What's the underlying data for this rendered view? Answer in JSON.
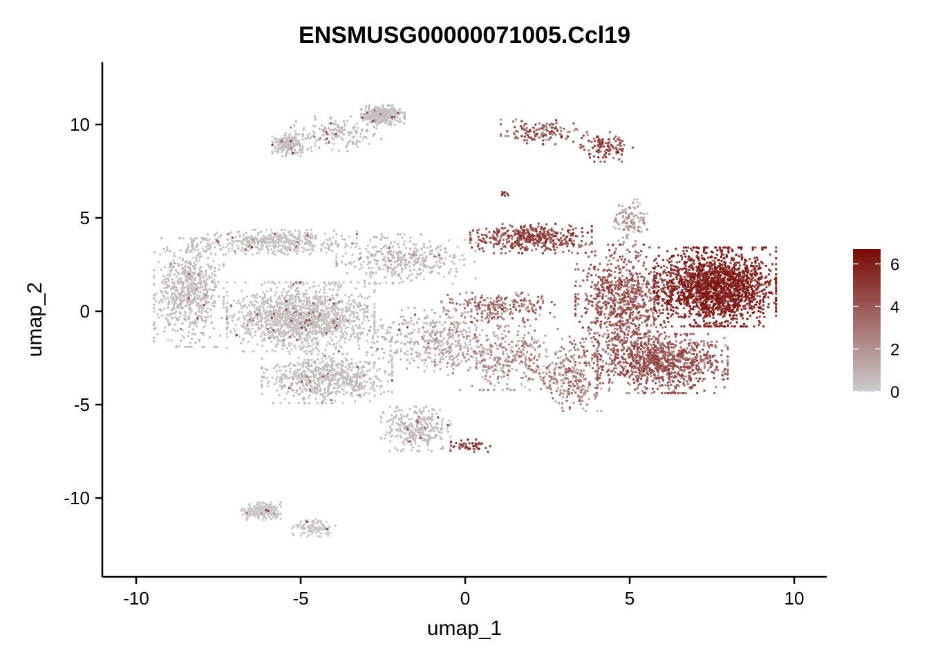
{
  "chart_data": {
    "type": "scatter",
    "title": "ENSMUSG00000071005.Ccl19",
    "xlabel": "umap_1",
    "ylabel": "umap_2",
    "xlim": [
      -11,
      11
    ],
    "ylim": [
      -14,
      13.2
    ],
    "x_ticks": [
      {
        "value": -10,
        "label": "-10"
      },
      {
        "value": -5,
        "label": "-5"
      },
      {
        "value": 0,
        "label": "0"
      },
      {
        "value": 5,
        "label": "5"
      },
      {
        "value": 10,
        "label": "10"
      }
    ],
    "y_ticks": [
      {
        "value": 10,
        "label": "10"
      },
      {
        "value": 5,
        "label": "5"
      },
      {
        "value": 0,
        "label": "0"
      },
      {
        "value": -5,
        "label": "-5"
      },
      {
        "value": -10,
        "label": "-10"
      }
    ],
    "grid": false,
    "color_scale": {
      "low_color": "#cccccc",
      "high_color": "#7a0a06",
      "min": 0,
      "max": 6.7,
      "ticks": [
        {
          "value": 0,
          "label": "0"
        },
        {
          "value": 2,
          "label": "2"
        },
        {
          "value": 4,
          "label": "4"
        },
        {
          "value": 6,
          "label": "6"
        }
      ],
      "position": "right"
    },
    "clusters": [
      {
        "x": 7.6,
        "y": 1.3,
        "sx": 1.4,
        "sy": 1.6,
        "n": 1900,
        "expr": [
          4.2,
          6.5
        ]
      },
      {
        "x": 6.0,
        "y": -2.8,
        "sx": 1.5,
        "sy": 1.2,
        "n": 950,
        "expr": [
          2.0,
          5.0
        ]
      },
      {
        "x": 4.8,
        "y": 0.4,
        "sx": 1.1,
        "sy": 2.4,
        "n": 850,
        "expr": [
          2.2,
          5.0
        ]
      },
      {
        "x": 3.2,
        "y": -3.5,
        "sx": 0.9,
        "sy": 1.4,
        "n": 250,
        "expr": [
          0.5,
          4.0
        ]
      },
      {
        "x": 2.0,
        "y": 3.9,
        "sx": 1.4,
        "sy": 0.6,
        "n": 420,
        "expr": [
          2.5,
          5.5
        ]
      },
      {
        "x": 1.0,
        "y": 0.2,
        "sx": 1.3,
        "sy": 0.6,
        "n": 230,
        "expr": [
          1.0,
          4.5
        ]
      },
      {
        "x": 5.0,
        "y": 4.8,
        "sx": 0.4,
        "sy": 0.9,
        "n": 110,
        "expr": [
          0.0,
          2.5
        ]
      },
      {
        "x": 2.4,
        "y": 9.6,
        "sx": 1.0,
        "sy": 0.5,
        "n": 130,
        "expr": [
          1.5,
          5.5
        ]
      },
      {
        "x": 4.3,
        "y": 8.8,
        "sx": 0.6,
        "sy": 0.6,
        "n": 110,
        "expr": [
          2.5,
          5.5
        ]
      },
      {
        "x": 1.2,
        "y": 6.3,
        "sx": 0.15,
        "sy": 0.1,
        "n": 10,
        "expr": [
          3.0,
          5.5
        ]
      },
      {
        "x": 0.1,
        "y": -7.2,
        "sx": 0.5,
        "sy": 0.25,
        "n": 45,
        "expr": [
          3.5,
          6.0
        ]
      },
      {
        "x": -5.0,
        "y": -0.3,
        "sx": 1.7,
        "sy": 1.4,
        "n": 1500,
        "expr": [
          0.0,
          0.5
        ]
      },
      {
        "x": -8.4,
        "y": 1.0,
        "sx": 0.8,
        "sy": 2.2,
        "n": 650,
        "expr": [
          0.0,
          0.8
        ]
      },
      {
        "x": -5.8,
        "y": 3.7,
        "sx": 1.9,
        "sy": 0.5,
        "n": 450,
        "expr": [
          0.0,
          0.5
        ]
      },
      {
        "x": -4.2,
        "y": -3.6,
        "sx": 1.5,
        "sy": 1.0,
        "n": 650,
        "expr": [
          0.0,
          0.7
        ]
      },
      {
        "x": -1.5,
        "y": -6.3,
        "sx": 0.8,
        "sy": 0.9,
        "n": 300,
        "expr": [
          0.0,
          0.7
        ]
      },
      {
        "x": -1.0,
        "y": -1.5,
        "sx": 1.5,
        "sy": 1.3,
        "n": 380,
        "expr": [
          0.0,
          1.5
        ]
      },
      {
        "x": 1.2,
        "y": -2.5,
        "sx": 1.6,
        "sy": 1.3,
        "n": 380,
        "expr": [
          0.0,
          3.0
        ]
      },
      {
        "x": -1.8,
        "y": 2.8,
        "sx": 1.6,
        "sy": 1.0,
        "n": 350,
        "expr": [
          0.0,
          1.0
        ]
      },
      {
        "x": -2.5,
        "y": 10.5,
        "sx": 0.5,
        "sy": 0.4,
        "n": 380,
        "expr": [
          0.0,
          0.5
        ]
      },
      {
        "x": -5.4,
        "y": 8.9,
        "sx": 0.35,
        "sy": 0.45,
        "n": 220,
        "expr": [
          0.0,
          0.5
        ]
      },
      {
        "x": -4.0,
        "y": 9.5,
        "sx": 1.1,
        "sy": 0.7,
        "n": 150,
        "expr": [
          0.0,
          1.0
        ]
      },
      {
        "x": -6.2,
        "y": -10.7,
        "sx": 0.45,
        "sy": 0.35,
        "n": 230,
        "expr": [
          0.0,
          0.2
        ]
      },
      {
        "x": -4.6,
        "y": -11.6,
        "sx": 0.5,
        "sy": 0.35,
        "n": 110,
        "expr": [
          0.0,
          0.2
        ]
      }
    ]
  }
}
